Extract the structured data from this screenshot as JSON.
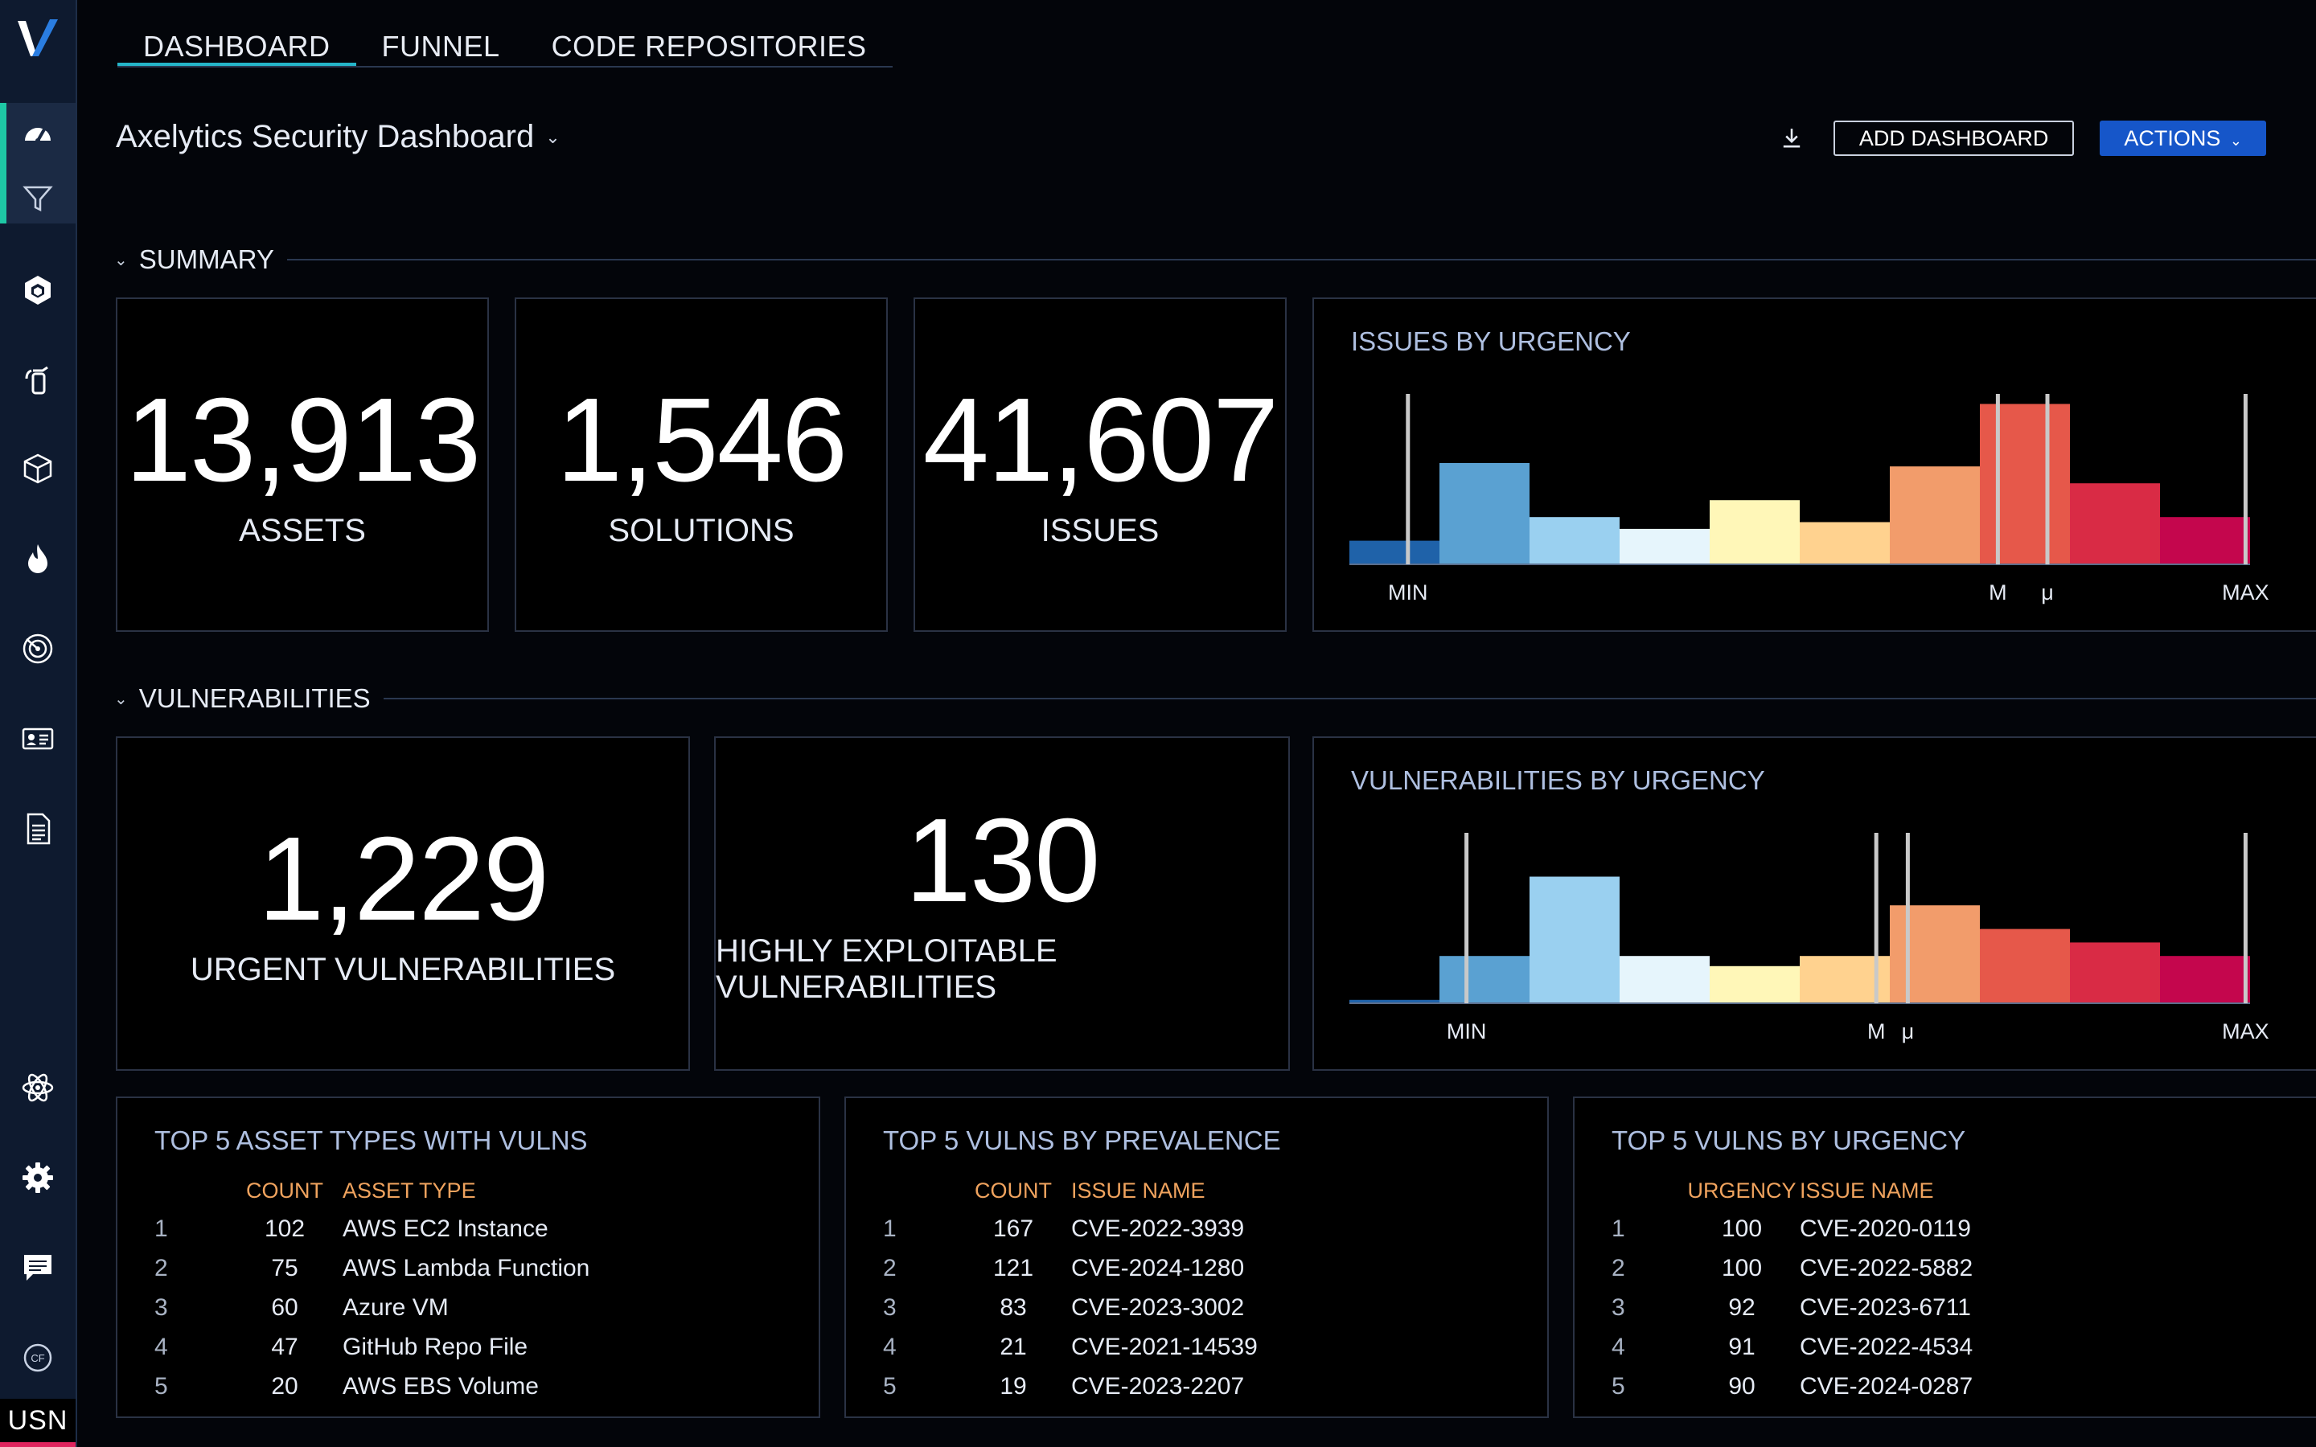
{
  "sidebar": {
    "items": [
      {
        "name": "dashboard",
        "icon": "gauge-icon"
      },
      {
        "name": "filter",
        "icon": "filter-icon"
      },
      {
        "name": "assets",
        "icon": "hexagon-cube-icon"
      },
      {
        "name": "remediation",
        "icon": "fire-extinguisher-icon"
      },
      {
        "name": "inventory",
        "icon": "cube-icon"
      },
      {
        "name": "threats",
        "icon": "flame-icon"
      },
      {
        "name": "scans",
        "icon": "radar-icon"
      },
      {
        "name": "identities",
        "icon": "id-card-icon"
      },
      {
        "name": "reports",
        "icon": "document-icon"
      },
      {
        "name": "integrations",
        "icon": "atom-icon"
      },
      {
        "name": "settings",
        "icon": "gear-icon"
      },
      {
        "name": "chat",
        "icon": "chat-icon"
      },
      {
        "name": "cf",
        "icon": "cf-badge-icon"
      }
    ],
    "region": "USN",
    "active_color": "#1ec8a5"
  },
  "tabs": [
    "DASHBOARD",
    "FUNNEL",
    "CODE REPOSITORIES"
  ],
  "active_tab": "DASHBOARD",
  "dashboard_title": "Axelytics Security Dashboard",
  "toolbar": {
    "add_dashboard": "ADD DASHBOARD",
    "actions": "ACTIONS"
  },
  "sections": {
    "summary": "SUMMARY",
    "vulnerabilities": "VULNERABILITIES"
  },
  "summary": {
    "assets": {
      "value": "13,913",
      "label": "ASSETS"
    },
    "solutions": {
      "value": "1,546",
      "label": "SOLUTIONS"
    },
    "issues": {
      "value": "41,607",
      "label": "ISSUES"
    }
  },
  "vulns": {
    "urgent": {
      "value": "1,229",
      "label": "URGENT VULNERABILITIES"
    },
    "exploitable": {
      "value": "130",
      "label": "HIGHLY EXPLOITABLE VULNERABILITIES"
    }
  },
  "chart_data": [
    {
      "type": "bar",
      "title": "ISSUES BY URGENCY",
      "values": [
        14,
        60,
        28,
        21,
        38,
        25,
        58,
        95,
        48,
        28
      ],
      "colors": [
        "#1f62a9",
        "#5aa1d2",
        "#9ad0f0",
        "#e6f5fc",
        "#fff7b8",
        "#ffd28f",
        "#f29c6b",
        "#e6584a",
        "#d92b45",
        "#c4064d"
      ],
      "markers": [
        {
          "label": "MIN",
          "at": 0.65
        },
        {
          "label": "M",
          "at": 7.2
        },
        {
          "label": "μ",
          "at": 7.75
        },
        {
          "label": "MAX",
          "at": 9.95
        }
      ]
    },
    {
      "type": "bar",
      "title": "VULNERABILITIES BY URGENCY",
      "values": [
        2,
        28,
        75,
        28,
        22,
        28,
        58,
        44,
        36,
        28
      ],
      "colors": [
        "#1f62a9",
        "#5aa1d2",
        "#9ad0f0",
        "#e6f5fc",
        "#fff7b8",
        "#ffd28f",
        "#f29c6b",
        "#e6584a",
        "#d92b45",
        "#c4064d"
      ],
      "markers": [
        {
          "label": "MIN",
          "at": 1.3
        },
        {
          "label": "M",
          "at": 5.85
        },
        {
          "label": "μ",
          "at": 6.2
        },
        {
          "label": "MAX",
          "at": 9.95
        }
      ]
    }
  ],
  "tables": [
    {
      "title": "TOP 5 ASSET TYPES WITH VULNS",
      "headers": [
        "COUNT",
        "ASSET TYPE"
      ],
      "rows": [
        {
          "idx": "1",
          "count": "102",
          "name": "AWS EC2 Instance"
        },
        {
          "idx": "2",
          "count": "75",
          "name": "AWS Lambda Function"
        },
        {
          "idx": "3",
          "count": "60",
          "name": "Azure VM"
        },
        {
          "idx": "4",
          "count": "47",
          "name": "GitHub Repo File"
        },
        {
          "idx": "5",
          "count": "20",
          "name": "AWS EBS Volume"
        }
      ]
    },
    {
      "title": "TOP 5 VULNS BY PREVALENCE",
      "headers": [
        "COUNT",
        "ISSUE NAME"
      ],
      "rows": [
        {
          "idx": "1",
          "count": "167",
          "name": "CVE-2022-3939"
        },
        {
          "idx": "2",
          "count": "121",
          "name": "CVE-2024-1280"
        },
        {
          "idx": "3",
          "count": "83",
          "name": "CVE-2023-3002"
        },
        {
          "idx": "4",
          "count": "21",
          "name": "CVE-2021-14539"
        },
        {
          "idx": "5",
          "count": "19",
          "name": "CVE-2023-2207"
        }
      ]
    },
    {
      "title": "TOP 5 VULNS BY URGENCY",
      "headers": [
        "URGENCY",
        "ISSUE NAME"
      ],
      "rows": [
        {
          "idx": "1",
          "count": "100",
          "name": "CVE-2020-0119"
        },
        {
          "idx": "2",
          "count": "100",
          "name": "CVE-2022-5882"
        },
        {
          "idx": "3",
          "count": "92",
          "name": "CVE-2023-6711"
        },
        {
          "idx": "4",
          "count": "91",
          "name": "CVE-2022-4534"
        },
        {
          "idx": "5",
          "count": "90",
          "name": "CVE-2024-0287"
        }
      ]
    }
  ]
}
